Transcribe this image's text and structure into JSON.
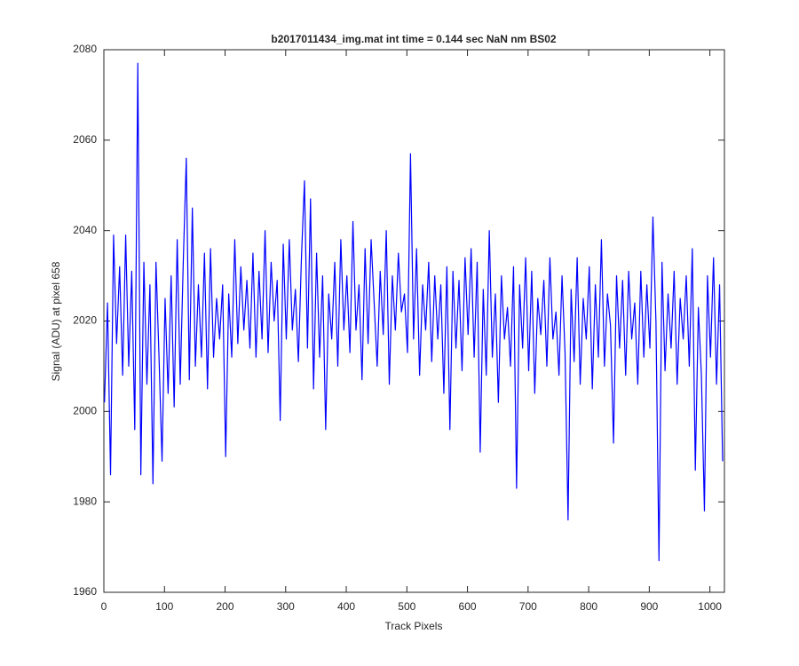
{
  "chart_data": {
    "type": "line",
    "title": "b2017011434_img.mat int time = 0.144 sec  NaN nm BS02",
    "x_label": "Track Pixels",
    "y_label": "Signal (ADU) at pixel 658",
    "xlim": [
      0,
      1024
    ],
    "xticks": [
      0,
      100,
      200,
      300,
      400,
      500,
      600,
      700,
      800,
      900,
      1000
    ],
    "ylim": [
      1960,
      2080
    ],
    "yticks": [
      1960,
      1980,
      2000,
      2020,
      2040,
      2060,
      2080
    ],
    "x": [
      1,
      6,
      11,
      16,
      21,
      26,
      31,
      36,
      41,
      46,
      51,
      56,
      61,
      66,
      71,
      76,
      81,
      86,
      91,
      96,
      101,
      106,
      111,
      116,
      121,
      126,
      131,
      136,
      141,
      146,
      151,
      156,
      161,
      166,
      171,
      176,
      181,
      186,
      191,
      196,
      201,
      206,
      211,
      216,
      221,
      226,
      231,
      236,
      241,
      246,
      251,
      256,
      261,
      266,
      271,
      276,
      281,
      286,
      291,
      296,
      301,
      306,
      311,
      316,
      321,
      326,
      331,
      336,
      341,
      346,
      351,
      356,
      361,
      366,
      371,
      376,
      381,
      386,
      391,
      396,
      401,
      406,
      411,
      416,
      421,
      426,
      431,
      436,
      441,
      446,
      451,
      456,
      461,
      466,
      471,
      476,
      481,
      486,
      491,
      496,
      501,
      506,
      511,
      516,
      521,
      526,
      531,
      536,
      541,
      546,
      551,
      556,
      561,
      566,
      571,
      576,
      581,
      586,
      591,
      596,
      601,
      606,
      611,
      616,
      621,
      626,
      631,
      636,
      641,
      646,
      651,
      656,
      661,
      666,
      671,
      676,
      681,
      686,
      691,
      696,
      701,
      706,
      711,
      716,
      721,
      726,
      731,
      736,
      741,
      746,
      751,
      756,
      761,
      766,
      771,
      776,
      781,
      786,
      791,
      796,
      801,
      806,
      811,
      816,
      821,
      826,
      831,
      836,
      841,
      846,
      851,
      856,
      861,
      866,
      871,
      876,
      881,
      886,
      891,
      896,
      901,
      906,
      911,
      916,
      921,
      926,
      931,
      936,
      941,
      946,
      951,
      956,
      961,
      966,
      971,
      976,
      981,
      986,
      991,
      996,
      1001,
      1006,
      1011,
      1016,
      1021
    ],
    "series": [
      {
        "color": "#0000ff",
        "values": [
          2002,
          2024,
          1986,
          2039,
          2015,
          2032,
          2008,
          2039,
          2010,
          2031,
          1996,
          2077,
          1986,
          2033,
          2006,
          2028,
          1984,
          2033,
          2012,
          1989,
          2025,
          2004,
          2030,
          2001,
          2038,
          2006,
          2033,
          2056,
          2007,
          2045,
          2010,
          2028,
          2012,
          2035,
          2005,
          2036,
          2012,
          2025,
          2016,
          2028,
          1990,
          2026,
          2012,
          2038,
          2015,
          2032,
          2018,
          2029,
          2014,
          2035,
          2012,
          2031,
          2016,
          2040,
          2013,
          2033,
          2020,
          2029,
          1998,
          2037,
          2016,
          2038,
          2018,
          2027,
          2011,
          2034,
          2051,
          2014,
          2047,
          2005,
          2035,
          2012,
          2030,
          1996,
          2026,
          2016,
          2033,
          2010,
          2038,
          2018,
          2030,
          2013,
          2042,
          2018,
          2028,
          2007,
          2036,
          2015,
          2038,
          2024,
          2010,
          2031,
          2017,
          2040,
          2006,
          2030,
          2018,
          2035,
          2022,
          2026,
          2013,
          2057,
          2016,
          2036,
          2008,
          2028,
          2018,
          2033,
          2011,
          2030,
          2016,
          2028,
          2004,
          2032,
          1996,
          2031,
          2014,
          2029,
          2009,
          2034,
          2017,
          2036,
          2012,
          2033,
          1991,
          2027,
          2008,
          2040,
          2012,
          2026,
          2002,
          2030,
          2016,
          2023,
          2010,
          2032,
          1983,
          2028,
          2014,
          2034,
          2009,
          2031,
          2004,
          2025,
          2017,
          2029,
          2010,
          2034,
          2016,
          2022,
          2008,
          2030,
          2013,
          1976,
          2027,
          2011,
          2034,
          2006,
          2025,
          2016,
          2032,
          2005,
          2028,
          2012,
          2038,
          2010,
          2026,
          2019,
          1993,
          2030,
          2014,
          2029,
          2008,
          2031,
          2016,
          2024,
          2006,
          2031,
          2012,
          2028,
          2014,
          2043,
          2020,
          1967,
          2033,
          2009,
          2026,
          2014,
          2031,
          2006,
          2025,
          2016,
          2030,
          2010,
          2036,
          1987,
          2023,
          2008,
          1978,
          2030,
          2012,
          2034,
          2006,
          2028,
          1989
        ]
      }
    ]
  }
}
